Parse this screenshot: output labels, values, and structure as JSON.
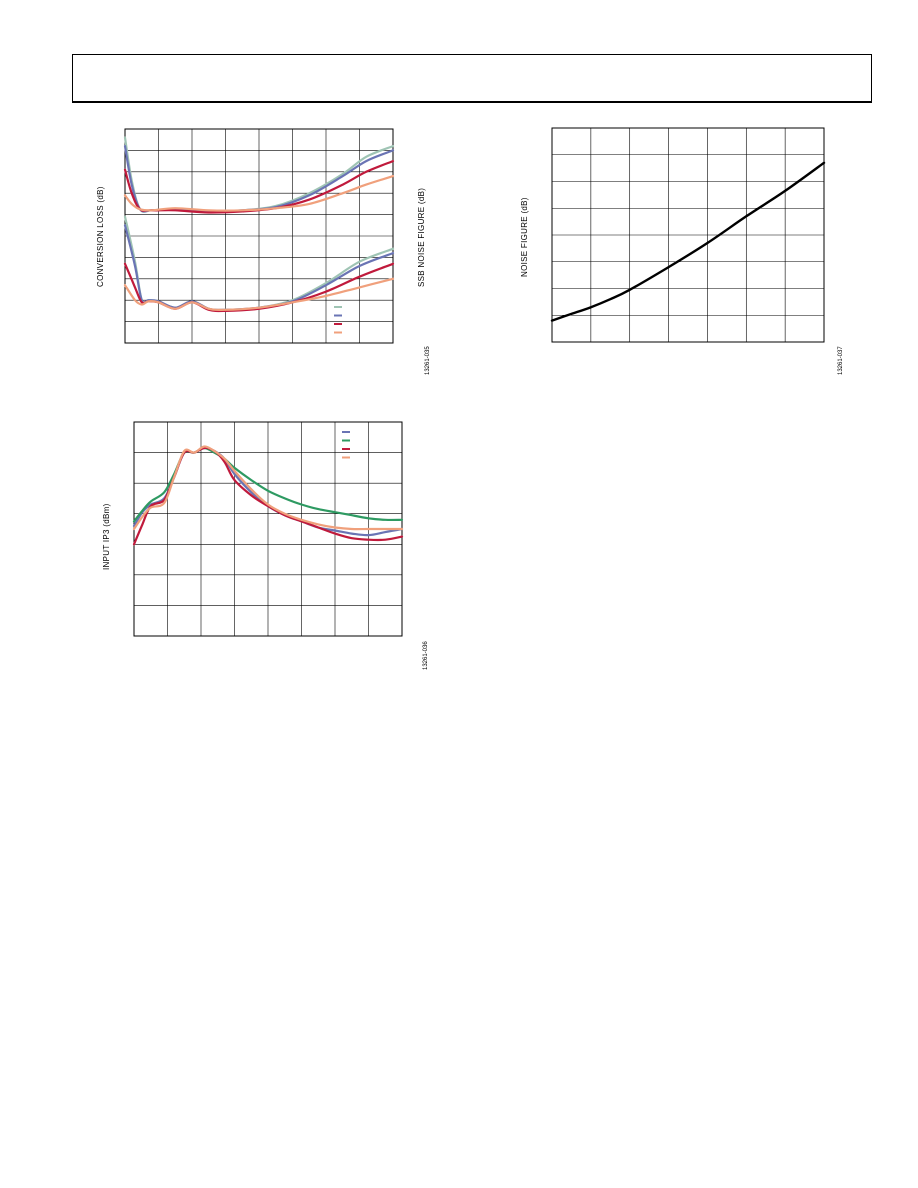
{
  "header": {
    "title": ""
  },
  "chart_data": [
    {
      "type": "line",
      "id": "conv-loss-nf",
      "ylabel_left": "CONVERSION LOSS (dB)",
      "ylabel_right": "SSB NOISE FIGURE (dB)",
      "figure_code": "13261-035",
      "grid": true,
      "xlim": [
        0,
        8
      ],
      "ylim": [
        0,
        10
      ],
      "series": [
        {
          "color": "#9fc4b4",
          "group": "loss",
          "x": [
            0,
            0.2,
            0.45,
            0.8,
            1.5,
            2.5,
            3.5,
            4.5,
            5.5,
            6.5,
            7.2,
            8.0
          ],
          "y": [
            9.6,
            7.6,
            6.25,
            6.2,
            6.25,
            6.15,
            6.2,
            6.4,
            7.0,
            7.9,
            8.7,
            9.2
          ]
        },
        {
          "color": "#6a74b4",
          "group": "loss",
          "x": [
            0,
            0.2,
            0.45,
            0.8,
            1.5,
            2.5,
            3.5,
            4.5,
            5.5,
            6.5,
            7.2,
            8.0
          ],
          "y": [
            9.2,
            7.4,
            6.25,
            6.2,
            6.25,
            6.15,
            6.2,
            6.35,
            6.9,
            7.8,
            8.5,
            9.0
          ]
        },
        {
          "color": "#c01a3c",
          "group": "loss",
          "x": [
            0,
            0.2,
            0.45,
            0.8,
            1.5,
            2.5,
            3.5,
            4.5,
            5.5,
            6.5,
            7.2,
            8.0
          ],
          "y": [
            8.1,
            7.0,
            6.25,
            6.2,
            6.2,
            6.1,
            6.15,
            6.3,
            6.7,
            7.4,
            8.0,
            8.5
          ]
        },
        {
          "color": "#f0a07c",
          "group": "loss",
          "x": [
            0,
            0.2,
            0.45,
            0.8,
            1.5,
            2.5,
            3.5,
            4.5,
            5.5,
            6.5,
            7.2,
            8.0
          ],
          "y": [
            6.9,
            6.5,
            6.25,
            6.2,
            6.3,
            6.2,
            6.2,
            6.3,
            6.5,
            7.0,
            7.4,
            7.8
          ]
        },
        {
          "color": "#9fc4b4",
          "group": "nf",
          "x": [
            0,
            0.3,
            0.5,
            0.7,
            1.0,
            1.5,
            2.0,
            2.5,
            3.0,
            4.0,
            5.0,
            6.0,
            7.0,
            8.0
          ],
          "y": [
            5.9,
            3.8,
            2.0,
            2.0,
            1.95,
            1.65,
            1.95,
            1.6,
            1.55,
            1.65,
            2.0,
            2.8,
            3.8,
            4.4
          ]
        },
        {
          "color": "#6a74b4",
          "group": "nf",
          "x": [
            0,
            0.3,
            0.5,
            0.7,
            1.0,
            1.5,
            2.0,
            2.5,
            3.0,
            4.0,
            5.0,
            6.0,
            7.0,
            8.0
          ],
          "y": [
            5.5,
            3.6,
            2.0,
            2.0,
            1.95,
            1.65,
            1.95,
            1.6,
            1.55,
            1.65,
            1.95,
            2.7,
            3.6,
            4.2
          ]
        },
        {
          "color": "#c01a3c",
          "group": "nf",
          "x": [
            0,
            0.3,
            0.5,
            0.7,
            1.0,
            1.5,
            2.0,
            2.5,
            3.0,
            4.0,
            5.0,
            6.0,
            7.0,
            8.0
          ],
          "y": [
            3.7,
            2.6,
            1.9,
            1.95,
            1.9,
            1.6,
            1.9,
            1.55,
            1.5,
            1.6,
            1.9,
            2.4,
            3.1,
            3.7
          ]
        },
        {
          "color": "#f0a07c",
          "group": "nf",
          "x": [
            0,
            0.3,
            0.5,
            0.7,
            1.0,
            1.5,
            2.0,
            2.5,
            3.0,
            4.0,
            5.0,
            6.0,
            7.0,
            8.0
          ],
          "y": [
            2.7,
            2.0,
            1.8,
            1.95,
            1.9,
            1.6,
            1.9,
            1.6,
            1.55,
            1.65,
            1.9,
            2.2,
            2.6,
            3.0
          ]
        }
      ]
    },
    {
      "type": "line",
      "id": "noise-figure",
      "ylabel": "NOISE FIGURE (dB)",
      "figure_code": "13261-037",
      "grid": true,
      "xlim": [
        0,
        7
      ],
      "ylim": [
        0,
        8
      ],
      "series": [
        {
          "color": "#000000",
          "x": [
            0,
            0.5,
            1,
            1.5,
            2,
            3,
            4,
            5,
            6,
            7
          ],
          "y": [
            0.8,
            1.05,
            1.3,
            1.6,
            1.95,
            2.8,
            3.7,
            4.7,
            5.65,
            6.7
          ]
        }
      ]
    },
    {
      "type": "line",
      "id": "input-ip3",
      "ylabel": "INPUT IP3 (dBm)",
      "figure_code": "13261-036",
      "grid": true,
      "xlim": [
        0,
        8
      ],
      "ylim": [
        0,
        7
      ],
      "series": [
        {
          "color": "#6a74b4",
          "x": [
            0,
            0.25,
            0.5,
            0.9,
            1.2,
            1.5,
            1.8,
            2.1,
            2.4,
            2.7,
            3.0,
            3.5,
            4.0,
            4.5,
            5.0,
            5.5,
            6.0,
            6.5,
            7.0,
            7.5,
            8.0
          ],
          "y": [
            3.6,
            4.05,
            4.3,
            4.5,
            5.2,
            6.0,
            6.0,
            6.15,
            6.05,
            5.8,
            5.3,
            4.7,
            4.25,
            3.95,
            3.75,
            3.55,
            3.45,
            3.35,
            3.3,
            3.4,
            3.5
          ]
        },
        {
          "color": "#2e9a62",
          "x": [
            0,
            0.25,
            0.5,
            0.9,
            1.2,
            1.5,
            1.8,
            2.1,
            2.4,
            2.7,
            3.0,
            3.5,
            4.0,
            4.5,
            5.0,
            5.5,
            6.0,
            6.5,
            7.0,
            7.5,
            8.0
          ],
          "y": [
            3.75,
            4.1,
            4.4,
            4.7,
            5.3,
            6.0,
            6.0,
            6.15,
            6.0,
            5.8,
            5.5,
            5.1,
            4.75,
            4.5,
            4.3,
            4.15,
            4.05,
            3.95,
            3.85,
            3.8,
            3.8
          ]
        },
        {
          "color": "#c01a3c",
          "x": [
            0,
            0.25,
            0.5,
            0.9,
            1.2,
            1.5,
            1.8,
            2.1,
            2.4,
            2.7,
            3.0,
            3.5,
            4.0,
            4.5,
            5.0,
            5.5,
            6.0,
            6.5,
            7.0,
            7.5,
            8.0
          ],
          "y": [
            3.0,
            3.65,
            4.25,
            4.45,
            5.2,
            6.0,
            6.0,
            6.15,
            6.05,
            5.7,
            5.1,
            4.6,
            4.25,
            3.95,
            3.75,
            3.55,
            3.35,
            3.2,
            3.15,
            3.15,
            3.25
          ]
        },
        {
          "color": "#f0a07c",
          "x": [
            0,
            0.25,
            0.5,
            0.9,
            1.2,
            1.5,
            1.8,
            2.1,
            2.4,
            2.7,
            3.0,
            3.5,
            4.0,
            4.5,
            5.0,
            5.5,
            6.0,
            6.5,
            7.0,
            7.5,
            8.0
          ],
          "y": [
            3.5,
            3.9,
            4.2,
            4.35,
            5.2,
            6.05,
            6.0,
            6.2,
            6.05,
            5.8,
            5.4,
            4.8,
            4.3,
            4.0,
            3.8,
            3.65,
            3.55,
            3.5,
            3.5,
            3.5,
            3.5
          ]
        }
      ]
    }
  ]
}
